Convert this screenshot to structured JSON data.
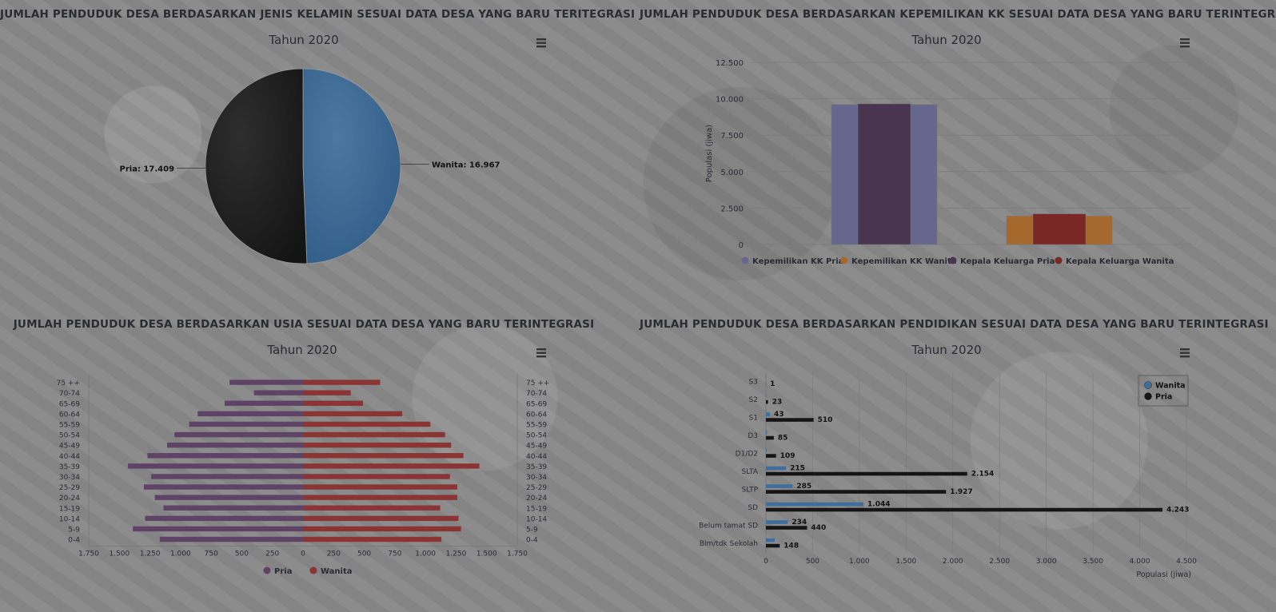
{
  "titles": {
    "gender": "JUMLAH PENDUDUK DESA BERDASARKAN JENIS KELAMIN SESUAI DATA DESA YANG BARU TERITEGRASI",
    "kk": "JUMLAH PENDUDUK DESA BERDASARKAN KEPEMILIKAN KK SESUAI DATA DESA YANG BARU TERINTEGRASI",
    "age": "JUMLAH PENDUDUK DESA BERDASARKAN USIA SESUAI DATA DESA YANG BARU TERINTEGRASI",
    "edu": "JUMLAH PENDUDUK DESA BERDASARKAN PENDIDIKAN SESUAI DATA DESA YANG BARU TERINTEGRASI"
  },
  "chart_data": [
    {
      "id": "gender",
      "type": "pie",
      "subtitle": "Tahun 2020",
      "slices": [
        {
          "name": "Wanita",
          "value": 16967,
          "label": "Wanita: 16.967",
          "color": "#2f5c86"
        },
        {
          "name": "Pria",
          "value": 17409,
          "label": "Pria: 17.409",
          "color": "#141414"
        }
      ]
    },
    {
      "id": "kk",
      "type": "bar",
      "subtitle": "Tahun 2020",
      "ylabel": "Populasi (jiwa)",
      "ylim": [
        0,
        12500
      ],
      "yticks": [
        0,
        2500,
        5000,
        7500,
        10000,
        12500
      ],
      "ytick_labels": [
        "0",
        "2.500",
        "5.000",
        "7.500",
        "10.000",
        "12.500"
      ],
      "series": [
        {
          "name": "Kepemilikan KK Pria",
          "value": 9600,
          "color": "#65688c",
          "group": 0,
          "layer": "back"
        },
        {
          "name": "Kepemilikan KK Wanita",
          "value": 1950,
          "color": "#a6692d",
          "group": 1,
          "layer": "back"
        },
        {
          "name": "Kepala Keluarga Pria",
          "value": 9650,
          "color": "#4a3550",
          "group": 0,
          "layer": "front"
        },
        {
          "name": "Kepala Keluarga Wanita",
          "value": 2100,
          "color": "#7a2826",
          "group": 1,
          "layer": "front"
        }
      ],
      "legend": "bottom"
    },
    {
      "id": "age",
      "type": "bar",
      "orientation": "horizontal-pyramid",
      "subtitle": "Tahun 2020",
      "categories": [
        "0-4",
        "5-9",
        "10-14",
        "15-19",
        "20-24",
        "25-29",
        "30-34",
        "35-39",
        "40-44",
        "45-49",
        "50-54",
        "55-59",
        "60-64",
        "65-69",
        "70-74",
        "75 ++"
      ],
      "series": [
        {
          "name": "Pria",
          "color": "#5e4366",
          "values": [
            1170,
            1390,
            1290,
            1140,
            1210,
            1300,
            1240,
            1430,
            1270,
            1110,
            1050,
            930,
            860,
            640,
            400,
            600
          ]
        },
        {
          "name": "Wanita",
          "color": "#8a3434",
          "values": [
            1130,
            1290,
            1270,
            1120,
            1260,
            1260,
            1200,
            1440,
            1310,
            1210,
            1160,
            1040,
            810,
            490,
            390,
            630
          ]
        }
      ],
      "xticks": [
        1750,
        1500,
        1250,
        1000,
        750,
        500,
        250,
        0,
        250,
        500,
        750,
        1000,
        1250,
        1500,
        1750
      ],
      "xtick_labels": [
        "1.750",
        "1.500",
        "1.250",
        "1.000",
        "750",
        "500",
        "250",
        "0",
        "250",
        "500",
        "750",
        "1.000",
        "1.250",
        "1.500",
        "1.750"
      ],
      "xlim": [
        -1750,
        1750
      ],
      "legend": "bottom"
    },
    {
      "id": "edu",
      "type": "bar",
      "orientation": "horizontal",
      "subtitle": "Tahun 2020",
      "xlabel": "Populasi (jiwa)",
      "xlim": [
        0,
        4500
      ],
      "xticks": [
        0,
        500,
        1000,
        1500,
        2000,
        2500,
        3000,
        3500,
        4000,
        4500
      ],
      "xtick_labels": [
        "0",
        "500",
        "1.000",
        "1.500",
        "2.000",
        "2.500",
        "3.000",
        "3.500",
        "4.000",
        "4.500"
      ],
      "categories": [
        "S3",
        "S2",
        "S1",
        "D3",
        "D1/D2",
        "SLTA",
        "SLTP",
        "SD",
        "Belum tamat SD",
        "Blm/tdk Sekolah"
      ],
      "series": [
        {
          "name": "Wanita",
          "color": "#3e6e9c",
          "values": [
            0,
            5,
            43,
            12,
            8,
            215,
            285,
            1044,
            234,
            95
          ],
          "labels": [
            "",
            "",
            "43",
            "",
            "",
            "215",
            "285",
            "1.044",
            "234",
            ""
          ]
        },
        {
          "name": "Pria",
          "color": "#151515",
          "values": [
            1,
            23,
            510,
            85,
            109,
            2154,
            1927,
            4243,
            440,
            148
          ],
          "labels": [
            "1",
            "23",
            "510",
            "85",
            "109",
            "2.154",
            "1.927",
            "4.243",
            "440",
            "148"
          ]
        }
      ],
      "legend": "top-right"
    }
  ]
}
